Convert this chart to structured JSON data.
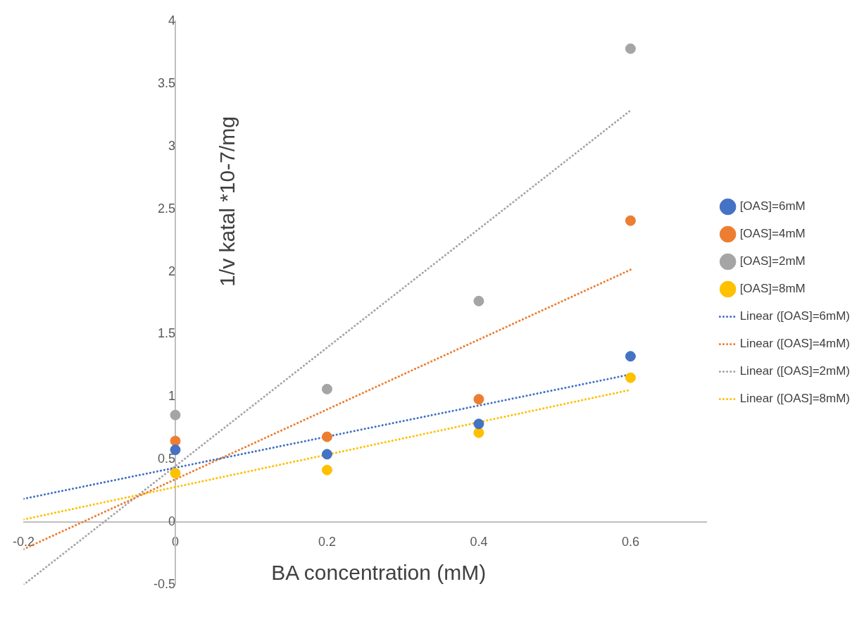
{
  "chart_data": {
    "type": "scatter",
    "xlabel": "BA concentration (mM)",
    "ylabel": "1/v katal *10-7/mg",
    "xlim": [
      -0.2,
      0.7
    ],
    "xticks": [
      -0.2,
      0,
      0.2,
      0.4,
      0.6
    ],
    "ylim": [
      -0.5,
      4
    ],
    "yticks": [
      -0.5,
      0,
      0.5,
      1,
      1.5,
      2,
      2.5,
      3,
      3.5,
      4
    ],
    "grid": false,
    "legend": "right",
    "marker": "circle",
    "series": [
      {
        "name": "[OAS]=6mM",
        "color": "#4472c4",
        "x": [
          0,
          0.2,
          0.4,
          0.6
        ],
        "values": [
          0.577,
          0.542,
          0.784,
          1.324
        ]
      },
      {
        "name": "[OAS]=4mM",
        "color": "#ed7d31",
        "x": [
          0,
          0.2,
          0.4,
          0.6
        ],
        "values": [
          0.648,
          0.681,
          0.981,
          2.407
        ]
      },
      {
        "name": "[OAS]=2mM",
        "color": "#a5a5a5",
        "x": [
          0,
          0.2,
          0.4,
          0.6
        ],
        "values": [
          0.855,
          1.062,
          1.765,
          3.78
        ]
      },
      {
        "name": "[OAS]=8mM",
        "color": "#ffc000",
        "x": [
          0,
          0.2,
          0.4,
          0.6
        ],
        "values": [
          0.39,
          0.416,
          0.714,
          1.153
        ]
      },
      {
        "name": "Linear ([OAS]=6mM)",
        "type": "line",
        "line_style": "dotted",
        "marker": "none",
        "color": "#4472c4",
        "x": [
          -0.2,
          0.6
        ],
        "values": [
          0.186,
          1.179
        ]
      },
      {
        "name": "Linear ([OAS]=4mM)",
        "type": "line",
        "line_style": "dotted",
        "marker": "none",
        "color": "#ed7d31",
        "x": [
          -0.2,
          0.6
        ],
        "values": [
          -0.216,
          2.015
        ]
      },
      {
        "name": "Linear ([OAS]=2mM)",
        "type": "line",
        "line_style": "dotted",
        "marker": "none",
        "color": "#a5a5a5",
        "x": [
          -0.2,
          0.6
        ],
        "values": [
          -0.5,
          3.287
        ]
      },
      {
        "name": "Linear ([OAS]=8mM)",
        "type": "line",
        "line_style": "dotted",
        "marker": "none",
        "color": "#ffc000",
        "x": [
          -0.2,
          0.6
        ],
        "values": [
          0.021,
          1.056
        ]
      }
    ]
  }
}
